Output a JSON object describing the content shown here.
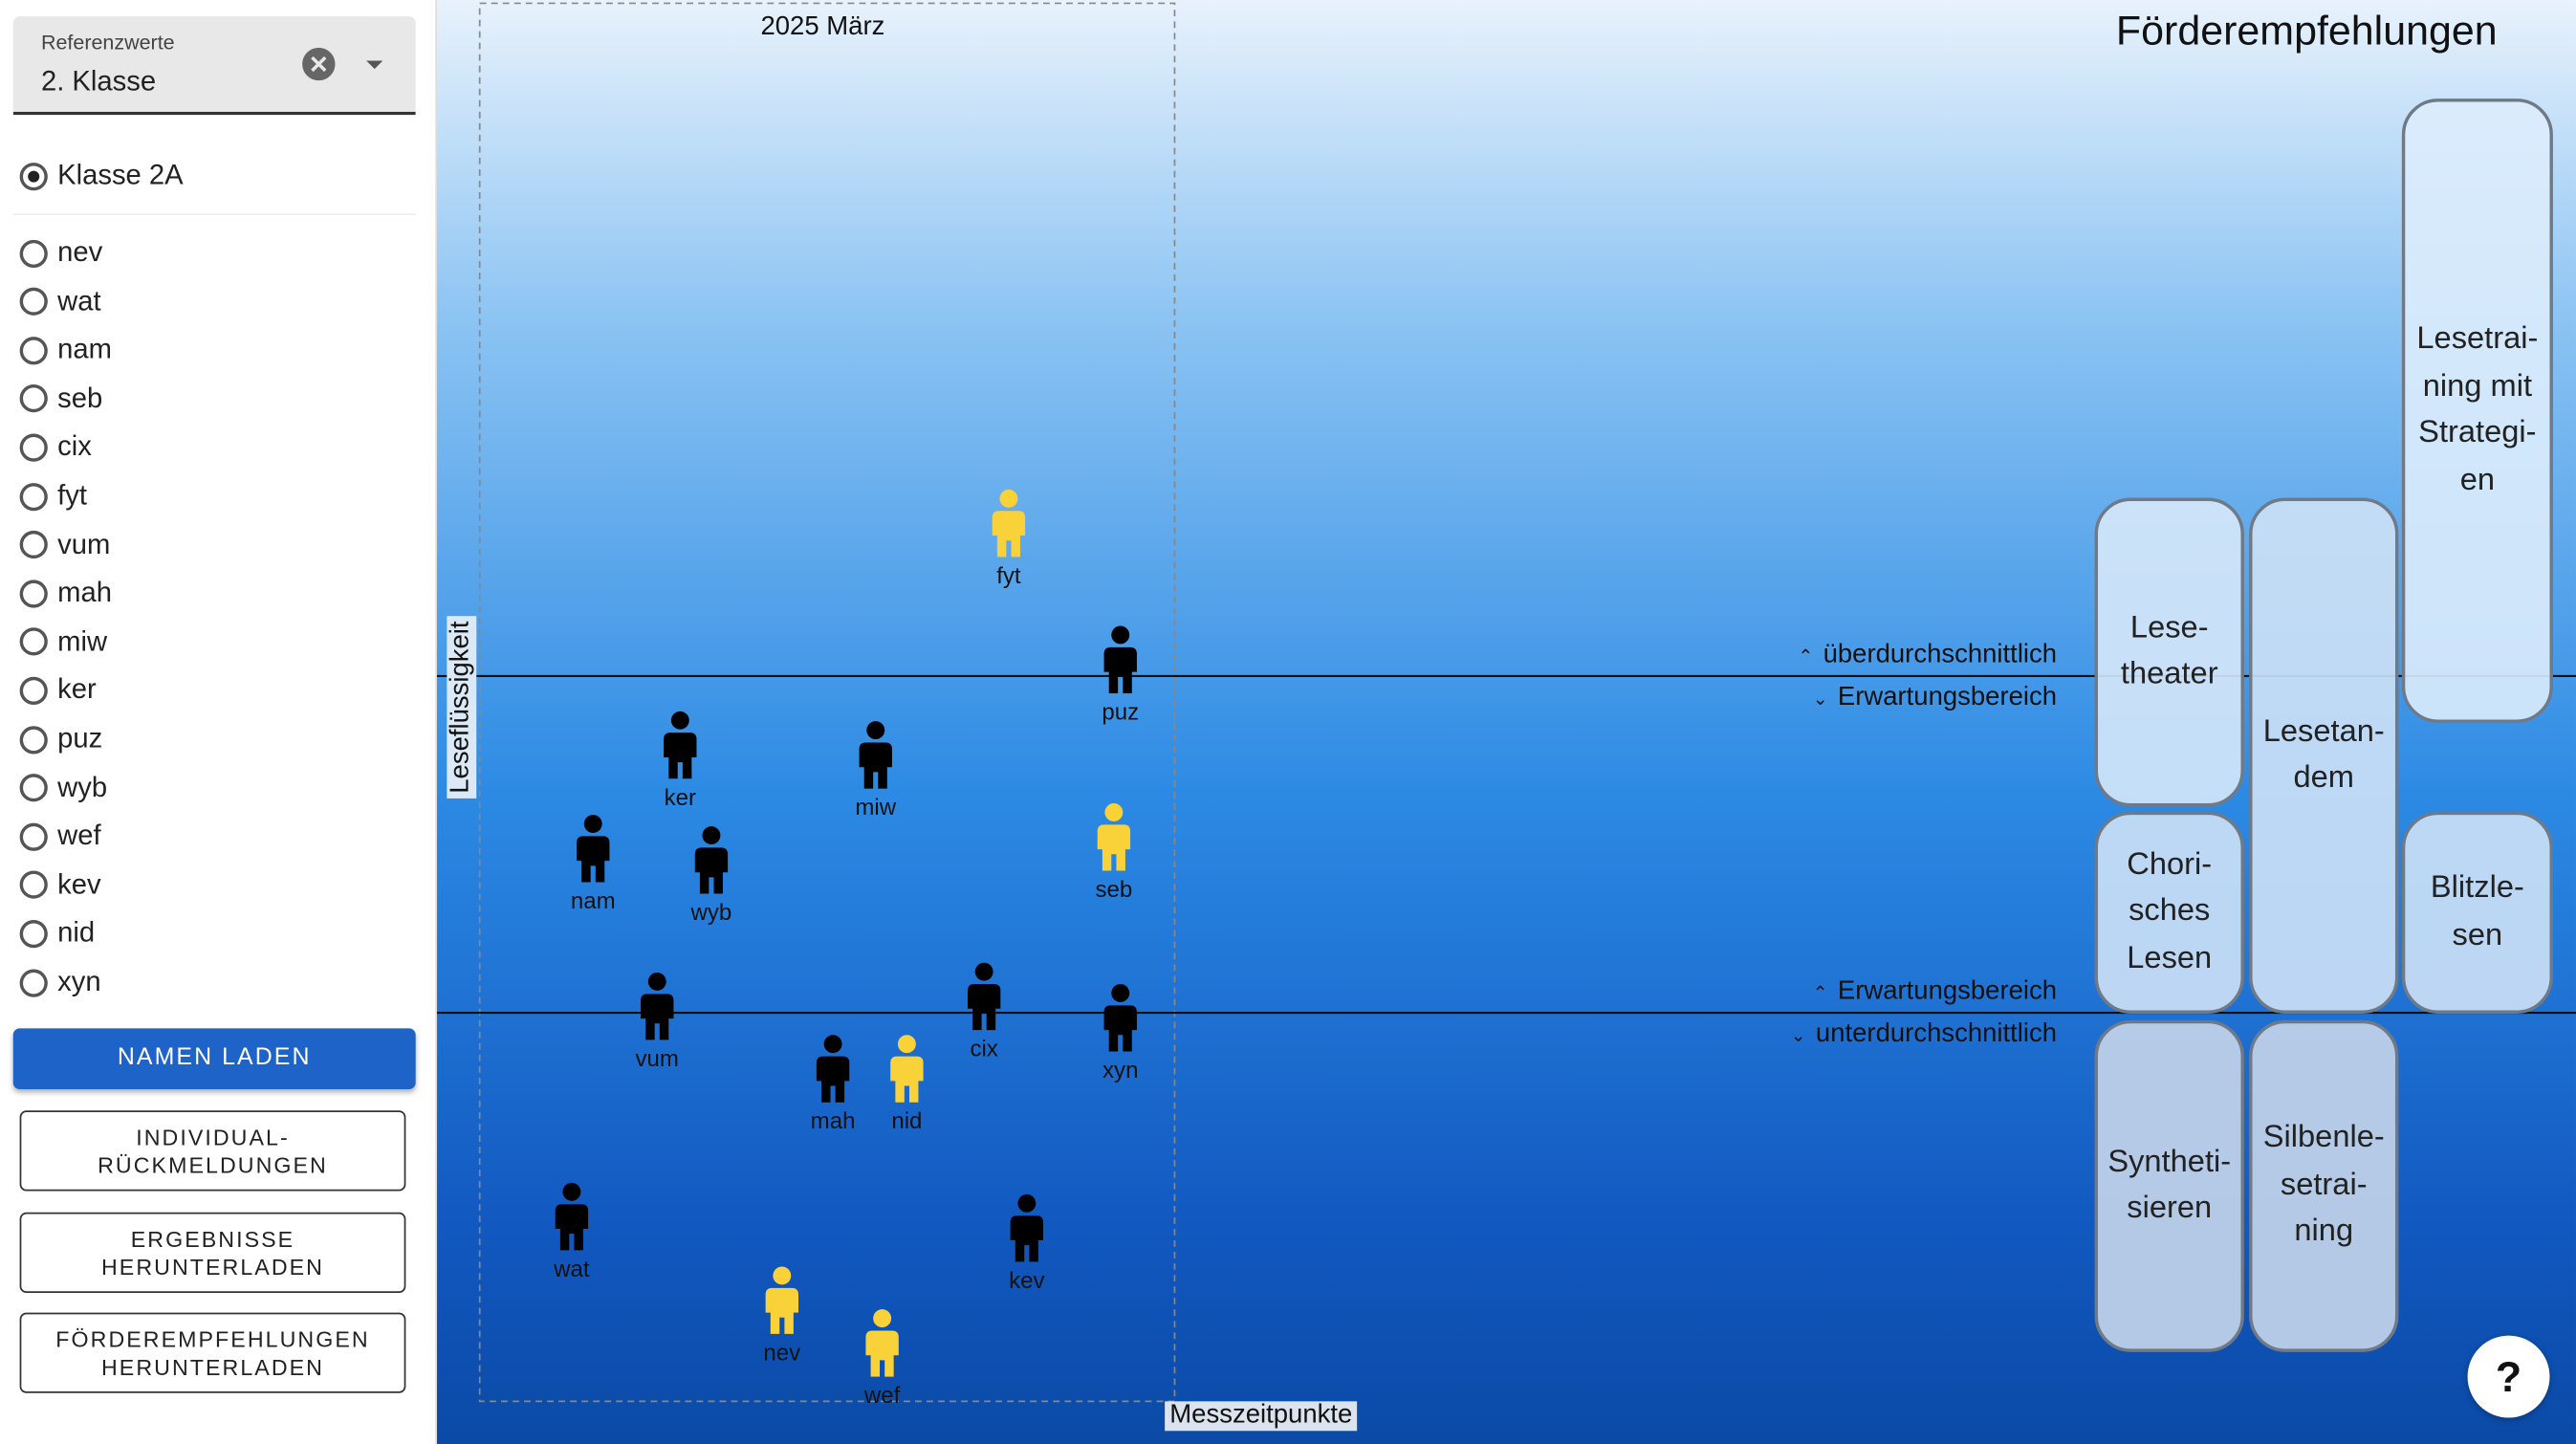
{
  "filter": {
    "label": "Referenzwerte",
    "value": "2. Klasse"
  },
  "class_option": "Klasse 2A",
  "students": [
    "nev",
    "wat",
    "nam",
    "seb",
    "cix",
    "fyt",
    "vum",
    "mah",
    "miw",
    "ker",
    "puz",
    "wyb",
    "wef",
    "kev",
    "nid",
    "xyn"
  ],
  "buttons": [
    "NAMEN LADEN",
    "INDIVIDUAL-\nRÜCKMELDUNGEN",
    "ERGEBNISSE\nHERUNTERLADEN",
    "FÖRDEREMPFEHLUNGEN\nHERUNTERLADEN"
  ],
  "plot": {
    "period": "2025 März",
    "y_label": "Leseflüssigkeit",
    "x_label": "Messzeitpunkte",
    "title": "Förderempfehlungen",
    "bands": [
      "überdurchschnittlich",
      "Erwartungsbereich",
      "Erwartungsbereich",
      "unterdurchschnittlich"
    ],
    "points": [
      {
        "name": "fyt",
        "color": "#f9d23a"
      },
      {
        "name": "puz",
        "color": "#000000"
      },
      {
        "name": "ker",
        "color": "#000000"
      },
      {
        "name": "miw",
        "color": "#000000"
      },
      {
        "name": "nam",
        "color": "#000000"
      },
      {
        "name": "wyb",
        "color": "#000000"
      },
      {
        "name": "seb",
        "color": "#f9d23a"
      },
      {
        "name": "vum",
        "color": "#000000"
      },
      {
        "name": "cix",
        "color": "#000000"
      },
      {
        "name": "xyn",
        "color": "#000000"
      },
      {
        "name": "mah",
        "color": "#000000"
      },
      {
        "name": "nid",
        "color": "#f9d23a"
      },
      {
        "name": "wat",
        "color": "#000000"
      },
      {
        "name": "kev",
        "color": "#000000"
      },
      {
        "name": "nev",
        "color": "#f9d23a"
      },
      {
        "name": "wef",
        "color": "#f9d23a"
      }
    ],
    "recommendations": [
      "Lese-\ntheater",
      "Chori-\nsches\nLesen",
      "Syntheti-\nsieren",
      "Lesetan-\ndem",
      "Silbenle-\nsetrai-\nning",
      "Lesetrai-\nning mit\nStrategi-\nen",
      "Blitzle-\nsen"
    ]
  },
  "help": "?"
}
